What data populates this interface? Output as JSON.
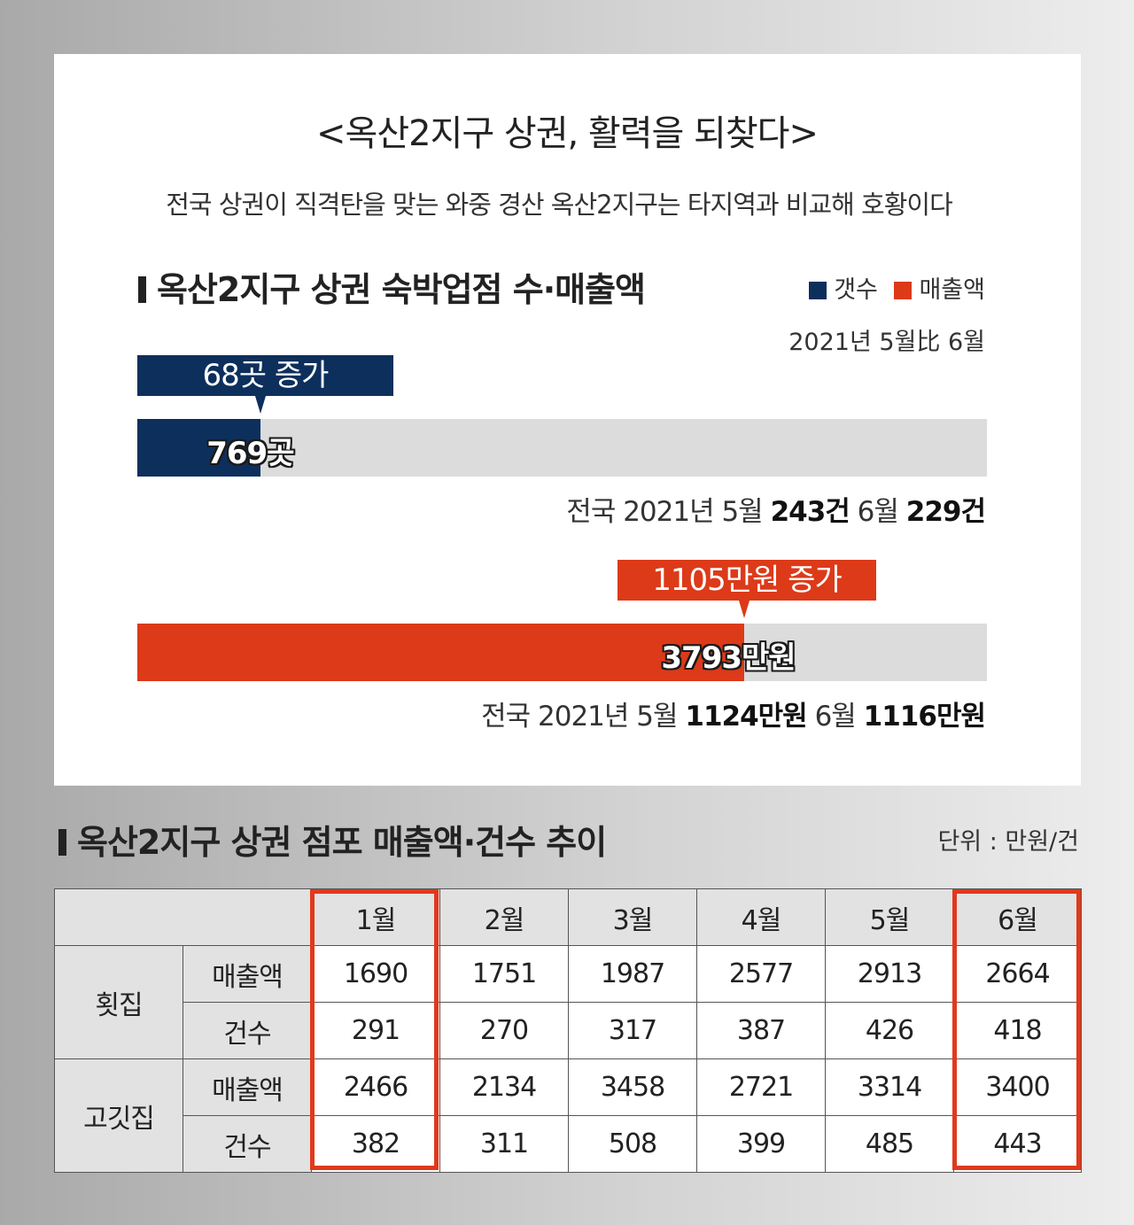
{
  "header": {
    "title": "<옥산2지구 상권, 활력을 되찾다>",
    "subtitle": "전국 상권이 직격탄을 맞는 와중 경산 옥산2지구는 타지역과 비교해 호황이다"
  },
  "section1": {
    "title": "옥산2지구 상권 숙박업점 수·매출액",
    "legend": [
      {
        "label": "갯수",
        "color": "#0d2f5c"
      },
      {
        "label": "매출액",
        "color": "#dc3a19"
      }
    ],
    "period": "2021년 5월比 6월"
  },
  "chart_data": {
    "type": "bar",
    "title": "옥산2지구 상권 숙박업점 수·매출액",
    "series": [
      {
        "name": "갯수",
        "value_label": "769곳",
        "value": 769,
        "fill_fraction": 0.145,
        "change_label": "68곳 증가",
        "color": "#0d2f5c",
        "national": {
          "prefix": "전국 2021년 5월",
          "may": "243건",
          "mid": "6월",
          "june": "229건"
        }
      },
      {
        "name": "매출액",
        "value_label": "3793만원",
        "value": 3793,
        "fill_fraction": 0.714,
        "change_label": "1105만원 증가",
        "color": "#dc3a19",
        "national": {
          "prefix": "전국 2021년 5월",
          "may": "1124만원",
          "mid": "6월",
          "june": "1116만원"
        }
      }
    ]
  },
  "section2": {
    "title": "옥산2지구 상권 점포 매출액·건수 추이",
    "unit": "단위 : 만원/건",
    "months": [
      "1월",
      "2월",
      "3월",
      "4월",
      "5월",
      "6월"
    ],
    "highlight_color": "#e0391c",
    "groups": [
      {
        "name": "횟집",
        "rows": [
          {
            "metric": "매출액",
            "values": [
              "1690",
              "1751",
              "1987",
              "2577",
              "2913",
              "2664"
            ]
          },
          {
            "metric": "건수",
            "values": [
              "291",
              "270",
              "317",
              "387",
              "426",
              "418"
            ]
          }
        ]
      },
      {
        "name": "고깃집",
        "rows": [
          {
            "metric": "매출액",
            "values": [
              "2466",
              "2134",
              "3458",
              "2721",
              "3314",
              "3400"
            ]
          },
          {
            "metric": "건수",
            "values": [
              "382",
              "311",
              "508",
              "399",
              "485",
              "443"
            ]
          }
        ]
      }
    ]
  }
}
